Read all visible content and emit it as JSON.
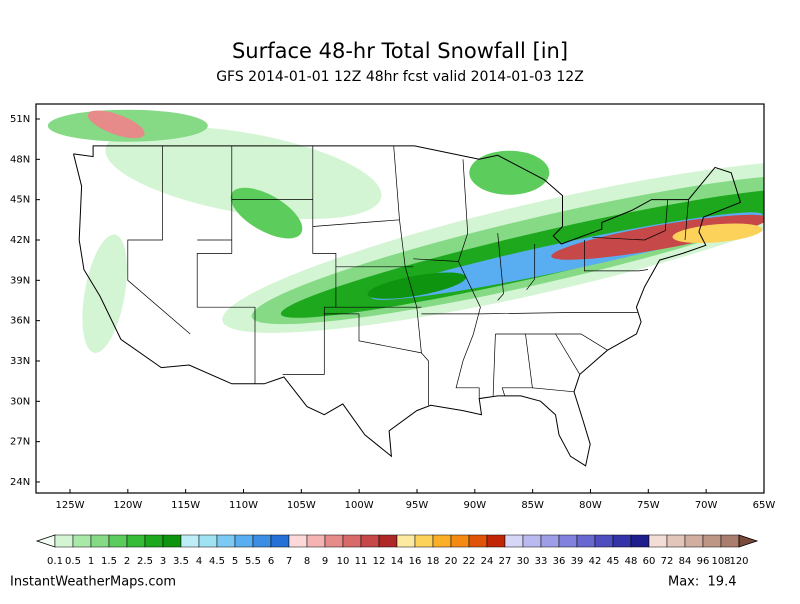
{
  "header": {
    "title": "Surface 48-hr Total Snowfall [in]",
    "subtitle": "GFS 2014-01-01 12Z 48hr fcst valid 2014-01-03 12Z"
  },
  "map": {
    "lat_labels": [
      "51N",
      "48N",
      "45N",
      "42N",
      "39N",
      "36N",
      "33N",
      "30N",
      "27N",
      "24N"
    ],
    "lon_labels": [
      "125W",
      "120W",
      "115W",
      "110W",
      "105W",
      "100W",
      "95W",
      "90W",
      "85W",
      "80W",
      "75W",
      "70W",
      "65W"
    ]
  },
  "colorbar": {
    "labels": [
      "0.1",
      "0.5",
      "1",
      "1.5",
      "2",
      "2.5",
      "3",
      "3.5",
      "4",
      "4.5",
      "5",
      "5.5",
      "6",
      "7",
      "8",
      "9",
      "10",
      "11",
      "12",
      "14",
      "16",
      "18",
      "20",
      "22",
      "24",
      "27",
      "30",
      "33",
      "36",
      "39",
      "42",
      "45",
      "48",
      "60",
      "72",
      "84",
      "96",
      "108",
      "120"
    ],
    "colors": [
      "#d4f5d4",
      "#a8e8a8",
      "#86da86",
      "#5ccc5c",
      "#36bc36",
      "#1ea81e",
      "#0f940f",
      "#bdeef8",
      "#9ee2f4",
      "#7ccaf4",
      "#58aef0",
      "#3c8ee4",
      "#2470d6",
      "#fcd8d8",
      "#f4b4b4",
      "#e68a8a",
      "#d86a6a",
      "#c64848",
      "#ae2828",
      "#fbeaa0",
      "#fcd25a",
      "#fbae28",
      "#f58a12",
      "#e0540a",
      "#c02606",
      "#d6d6f6",
      "#babaf0",
      "#9e9ee8",
      "#8282de",
      "#6868d0",
      "#4e4ebe",
      "#3434a8",
      "#1e1e8c",
      "#f2ded6",
      "#e2c6ba",
      "#d2aea0",
      "#be9686",
      "#aa7e6e",
      "#946456",
      "#7a4a3a"
    ]
  },
  "footer": {
    "site": "InstantWeatherMaps.com",
    "max": "Max:  19.4"
  }
}
